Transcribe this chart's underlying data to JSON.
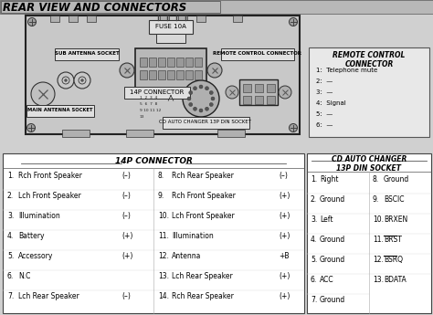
{
  "title": "REAR VIEW AND CONNECTORS",
  "bg_color": "#d0d0d0",
  "remote_connector_title": "REMOTE CONTROL\nCONNECTOR",
  "remote_items": [
    "1:  Telephone mute",
    "2:  —",
    "3:  —",
    "4:  Signal",
    "5:  —",
    "6:  —"
  ],
  "p14_title": "14P CONNECTOR",
  "p14_left": [
    [
      "1.",
      "Rch Front Speaker",
      "(–)"
    ],
    [
      "2.",
      "Lch Front Speaker",
      "(–)"
    ],
    [
      "3.",
      "Illumination",
      "(–)"
    ],
    [
      "4.",
      "Battery",
      "(+)"
    ],
    [
      "5.",
      "Accessory",
      "(+)"
    ],
    [
      "6.",
      "N.C",
      ""
    ],
    [
      "7.",
      "Lch Rear Speaker",
      "(–)"
    ]
  ],
  "p14_right": [
    [
      "8.",
      "Rch Rear Speaker",
      "(–)"
    ],
    [
      "9.",
      "Rch Front Speaker",
      "(+)"
    ],
    [
      "10.",
      "Lch Front Speaker",
      "(+)"
    ],
    [
      "11.",
      "Illumination",
      "(+)"
    ],
    [
      "12.",
      "Antenna",
      "+B"
    ],
    [
      "13.",
      "Lch Rear Speaker",
      "(+)"
    ],
    [
      "14.",
      "Rch Rear Speaker",
      "(+)"
    ]
  ],
  "cd_title": "CD AUTO CHANGER\n13P DIN SOCKET",
  "cd_left": [
    [
      "1.",
      "Right"
    ],
    [
      "2.",
      "Ground"
    ],
    [
      "3.",
      "Left"
    ],
    [
      "4.",
      "Ground"
    ],
    [
      "5.",
      "Ground"
    ],
    [
      "6.",
      "ACC"
    ],
    [
      "7.",
      "Ground"
    ]
  ],
  "cd_right": [
    [
      "8.",
      "Ground"
    ],
    [
      "9.",
      "BSCIC"
    ],
    [
      "10.",
      "BRXEN"
    ],
    [
      "11.",
      "BRST",
      true
    ],
    [
      "12.",
      "BSRQ",
      true
    ],
    [
      "13.",
      "BDATA"
    ]
  ],
  "label_fuse": "FUSE 10A",
  "label_sub_ant": "SUB ANTENNA SOCKET",
  "label_main_ant": "MAIN ANTENNA SOCKET",
  "label_14p": "14P CONNECTOR",
  "label_cd_socket": "CD AUTO CHANGER 13P DIN SOCKET",
  "label_remote_conn": "REMOTE CONTROL CONNECTOR"
}
